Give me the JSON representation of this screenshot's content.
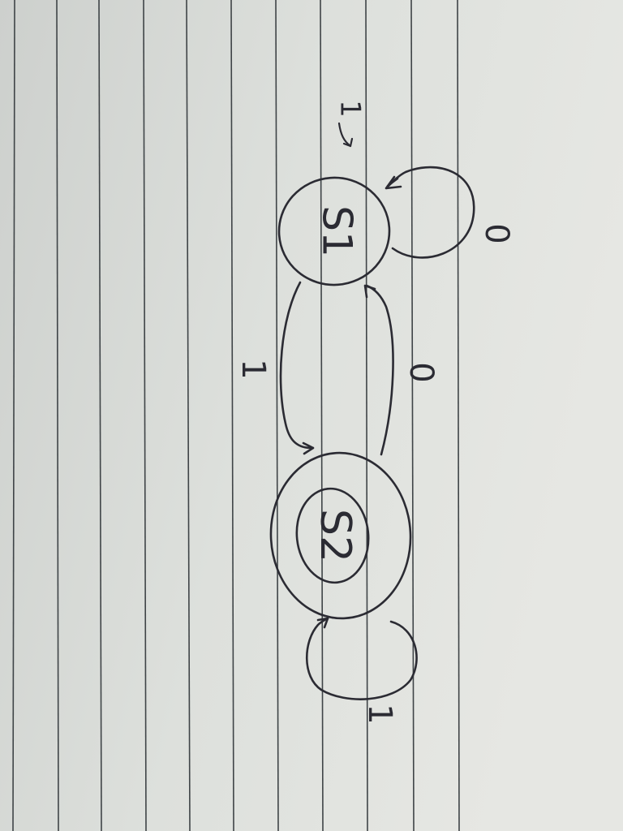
{
  "diagram": {
    "kind": "state-diagram",
    "states": [
      {
        "id": "s1",
        "label": "S1",
        "initial": true,
        "accepting": false
      },
      {
        "id": "s2",
        "label": "S2",
        "initial": false,
        "accepting": true
      }
    ],
    "transitions": [
      {
        "from": "S1",
        "to": "S1",
        "label": "0"
      },
      {
        "from": "S1",
        "to": "S2",
        "label": "1"
      },
      {
        "from": "S2",
        "to": "S1",
        "label": "0"
      },
      {
        "from": "S2",
        "to": "S2",
        "label": "1"
      }
    ],
    "initial_marker_label": "1"
  },
  "colors": {
    "ink": "#2b2b33",
    "paper": "#d9dcd8",
    "rule": "#3f4447"
  }
}
